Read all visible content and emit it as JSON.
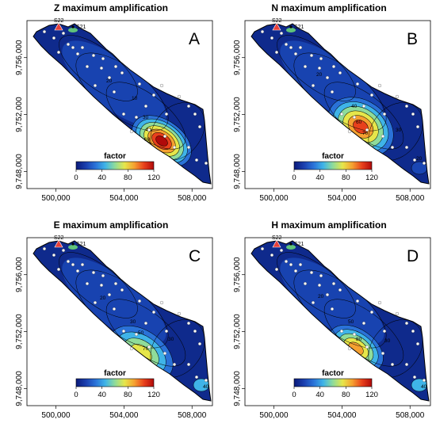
{
  "colorbar": {
    "title": "factor",
    "ticks": [
      "0",
      "40",
      "80",
      "120"
    ],
    "range": [
      0,
      120
    ],
    "colors": [
      "#0a1a7a",
      "#1b3fae",
      "#2a72d8",
      "#3fb4e8",
      "#8fdc9a",
      "#e6e64a",
      "#f5a030",
      "#e8401c",
      "#b00a0a"
    ]
  },
  "axes": {
    "x_ticks": [
      "500,000",
      "504,000",
      "508,000"
    ],
    "y_ticks": [
      "9,756,000",
      "9,752,000",
      "9,748,000"
    ],
    "x_values": [
      500000,
      504000,
      508000
    ],
    "y_values": [
      9756000,
      9752000,
      9748000
    ]
  },
  "stations_labeled": [
    "S22",
    "S21"
  ],
  "panels": [
    {
      "id": "A",
      "title": "Z maximum amplification",
      "label": "A",
      "hotspot_peak": 120,
      "contour_labels": [
        "20",
        "10",
        "30",
        "40",
        "60"
      ]
    },
    {
      "id": "B",
      "title": "N maximum amplification",
      "label": "B",
      "hotspot_peak": 110,
      "contour_labels": [
        "20",
        "40",
        "60",
        "70",
        "30",
        "20"
      ]
    },
    {
      "id": "C",
      "title": "E maximum amplification",
      "label": "C",
      "hotspot_peak": 70,
      "contour_labels": [
        "20",
        "30",
        "50",
        "70",
        "30",
        "40"
      ]
    },
    {
      "id": "D",
      "title": "H maximum amplification",
      "label": "D",
      "hotspot_peak": 90,
      "contour_labels": [
        "20",
        "50",
        "80",
        "30",
        "40"
      ]
    }
  ]
}
